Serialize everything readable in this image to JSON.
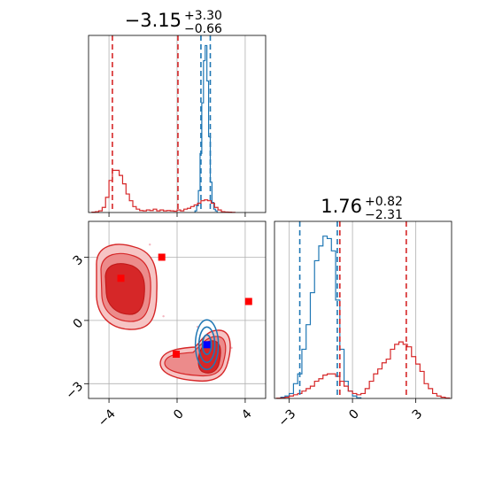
{
  "chart_data": {
    "type": "corner",
    "parameters": [
      {
        "title": {
          "median": "−3.15",
          "plus": "+3.30",
          "minus": "−0.66"
        },
        "range": [
          -5.2,
          5.2
        ],
        "ticks": [
          "−4",
          "0",
          "4"
        ]
      },
      {
        "title": {
          "median": "1.76",
          "plus": "+0.82",
          "minus": "−2.31"
        },
        "range": [
          -3.7,
          4.7
        ],
        "ticks": [
          "−3",
          "0",
          "3"
        ]
      }
    ],
    "colors": {
      "red": "#d62728",
      "blue": "#1f77b4",
      "point_red": "#ff0000",
      "point_blue": "#0000ff",
      "grid": "#b0b0b0"
    },
    "grid": true,
    "series": [
      {
        "color": "red",
        "hist_1": {
          "x": [
            -4.9,
            -4.7,
            -4.5,
            -4.3,
            -4.1,
            -3.9,
            -3.7,
            -3.5,
            -3.3,
            -3.1,
            -2.9,
            -2.7,
            -2.5,
            -2.3,
            -2.1,
            -1.9,
            -1.7,
            -1.5,
            -1.3,
            -1.1,
            -0.9,
            -0.7,
            -0.5,
            -0.3,
            -0.1,
            0.1,
            0.3,
            0.5,
            0.7,
            0.9,
            1.1,
            1.3,
            1.5,
            1.7,
            1.9,
            2.1,
            2.3,
            2.5,
            2.7,
            2.9,
            3.1,
            3.3
          ],
          "y": [
            0.002,
            0.005,
            0.01,
            0.03,
            0.09,
            0.19,
            0.25,
            0.25,
            0.22,
            0.17,
            0.11,
            0.07,
            0.035,
            0.02,
            0.012,
            0.01,
            0.015,
            0.012,
            0.02,
            0.01,
            0.015,
            0.01,
            0.012,
            0.01,
            0.008,
            0.015,
            0.01,
            0.02,
            0.025,
            0.035,
            0.045,
            0.055,
            0.07,
            0.075,
            0.07,
            0.055,
            0.03,
            0.015,
            0.005,
            0.003,
            0.002,
            0.001
          ]
        },
        "hist_2": {
          "x": [
            -3.5,
            -3.3,
            -3.1,
            -2.9,
            -2.7,
            -2.5,
            -2.3,
            -2.1,
            -1.9,
            -1.7,
            -1.5,
            -1.3,
            -1.1,
            -0.9,
            -0.7,
            -0.5,
            -0.3,
            -0.1,
            0.1,
            0.3,
            0.5,
            0.7,
            0.9,
            1.1,
            1.3,
            1.5,
            1.7,
            1.9,
            2.1,
            2.3,
            2.5,
            2.7,
            2.9,
            3.1,
            3.3,
            3.5,
            3.7,
            3.9,
            4.1,
            4.3,
            4.5
          ],
          "y": [
            0.001,
            0.002,
            0.005,
            0.01,
            0.015,
            0.02,
            0.03,
            0.04,
            0.05,
            0.07,
            0.08,
            0.095,
            0.1,
            0.1,
            0.09,
            0.07,
            0.05,
            0.03,
            0.02,
            0.015,
            0.02,
            0.04,
            0.07,
            0.1,
            0.12,
            0.145,
            0.16,
            0.2,
            0.22,
            0.23,
            0.22,
            0.21,
            0.17,
            0.14,
            0.11,
            0.06,
            0.04,
            0.02,
            0.01,
            0.005,
            0.002
          ]
        },
        "quantiles_1": [
          -3.8,
          0.05
        ],
        "quantiles_2": [
          -0.6,
          2.55
        ],
        "points": [
          [
            -3.3,
            2.0
          ],
          [
            -0.9,
            3.0
          ],
          [
            -0.05,
            -1.6
          ],
          [
            4.2,
            0.9
          ]
        ]
      },
      {
        "color": "blue",
        "hist_1": {
          "x": [
            1.1,
            1.2,
            1.3,
            1.4,
            1.5,
            1.6,
            1.7,
            1.8,
            1.9,
            2.0,
            2.1,
            2.2,
            2.3
          ],
          "y": [
            0.01,
            0.04,
            0.13,
            0.35,
            0.65,
            0.9,
            0.99,
            0.78,
            0.45,
            0.18,
            0.06,
            0.02,
            0.01
          ]
        },
        "hist_2": {
          "x": [
            -3.3,
            -3.1,
            -2.9,
            -2.7,
            -2.5,
            -2.3,
            -2.1,
            -1.9,
            -1.7,
            -1.5,
            -1.3,
            -1.1,
            -0.9,
            -0.7,
            -0.5,
            -0.3,
            -0.1,
            0.1,
            0.3
          ],
          "y": [
            0.005,
            0.01,
            0.02,
            0.06,
            0.1,
            0.2,
            0.3,
            0.43,
            0.56,
            0.62,
            0.66,
            0.65,
            0.6,
            0.4,
            0.2,
            0.07,
            0.03,
            0.01,
            0.003
          ]
        },
        "quantiles_1": [
          1.4,
          1.95
        ],
        "quantiles_2": [
          -2.5,
          -0.72
        ],
        "points": [
          [
            1.75,
            -1.15
          ]
        ]
      }
    ]
  }
}
